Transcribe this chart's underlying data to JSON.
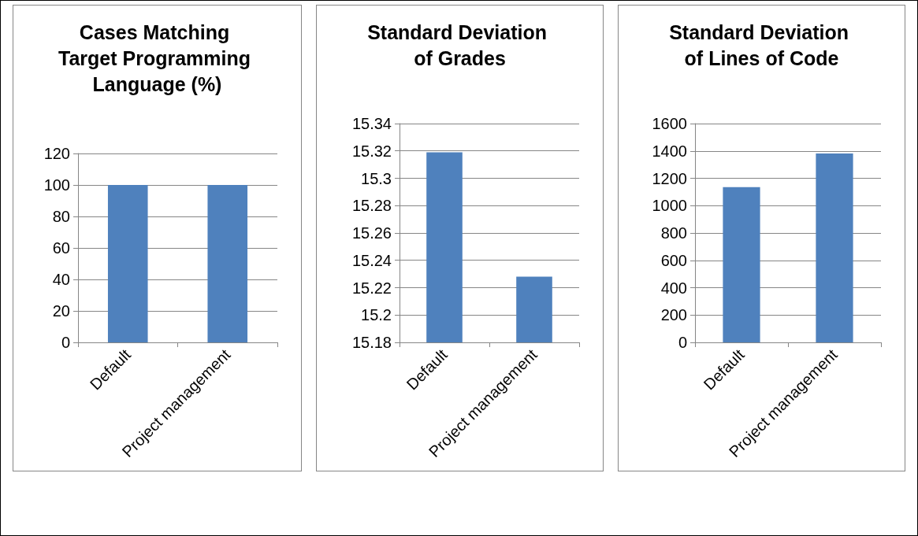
{
  "chart_data": [
    {
      "type": "bar",
      "title": "Cases Matching Target Programming Language (%)",
      "categories": [
        "Default",
        "Project management"
      ],
      "values": [
        100,
        100
      ],
      "color": "#4f81bd",
      "ylim": [
        0,
        120
      ],
      "yticks": [
        0,
        20,
        40,
        60,
        80,
        100,
        120
      ],
      "grid": "y"
    },
    {
      "type": "bar",
      "title": "Standard Deviation of Grades",
      "categories": [
        "Default",
        "Project management"
      ],
      "values": [
        15.319,
        15.228
      ],
      "color": "#4f81bd",
      "ylim": [
        15.18,
        15.34
      ],
      "yticks": [
        15.18,
        15.2,
        15.22,
        15.24,
        15.26,
        15.28,
        15.3,
        15.32,
        15.34
      ],
      "grid": "y"
    },
    {
      "type": "bar",
      "title": "Standard Deviation of Lines of Code",
      "categories": [
        "Default",
        "Project management"
      ],
      "values": [
        1135,
        1381
      ],
      "color": "#4f81bd",
      "ylim": [
        0,
        1600
      ],
      "yticks": [
        0,
        200,
        400,
        600,
        800,
        1000,
        1200,
        1400,
        1600
      ],
      "grid": "y"
    }
  ]
}
